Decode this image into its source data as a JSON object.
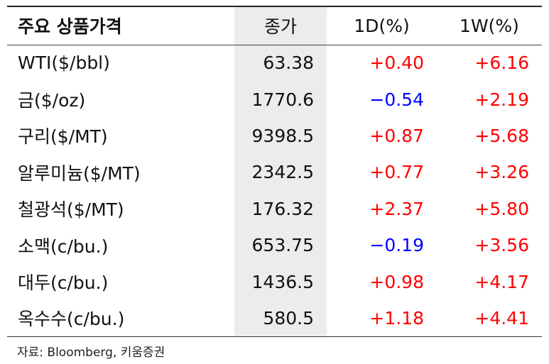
{
  "table": {
    "header": [
      "주요 상품가격",
      "종가",
      "1D(%)",
      "1W(%)"
    ],
    "rows": [
      [
        "WTI($/bbl)",
        "63.38",
        "+0.40",
        "+6.16"
      ],
      [
        "금($/oz)",
        "1770.6",
        "−0.54",
        "+2.19"
      ],
      [
        "구리($/MT)",
        "9398.5",
        "+0.87",
        "+5.68"
      ],
      [
        "알루미늄($/MT)",
        "2342.5",
        "+0.77",
        "+3.26"
      ],
      [
        "철광석($/MT)",
        "176.32",
        "+2.37",
        "+5.80"
      ],
      [
        "소맥(c/bu.)",
        "653.75",
        "−0.19",
        "+3.56"
      ],
      [
        "대두(c/bu.)",
        "1436.5",
        "+0.98",
        "+4.17"
      ],
      [
        "옥수수(c/bu.)",
        "580.5",
        "+1.18",
        "+4.41"
      ]
    ],
    "colors": {
      "positive": "#ff0000",
      "negative": "#0000ff"
    }
  },
  "source": "자료: Bloomberg, 키움증권"
}
